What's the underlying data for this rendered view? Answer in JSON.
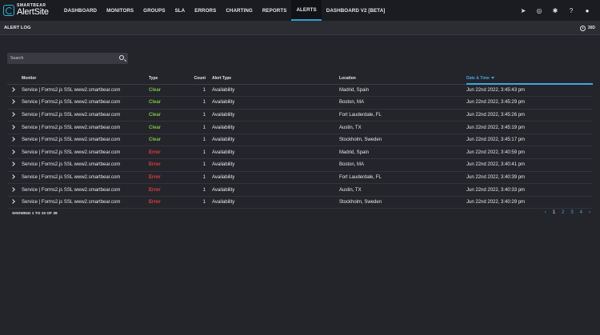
{
  "brand": {
    "company": "SMARTBEAR",
    "product": "AlertSite"
  },
  "nav": {
    "items": [
      {
        "label": "DASHBOARD"
      },
      {
        "label": "MONITORS"
      },
      {
        "label": "GROUPS"
      },
      {
        "label": "SLA"
      },
      {
        "label": "ERRORS"
      },
      {
        "label": "CHARTING"
      },
      {
        "label": "REPORTS"
      },
      {
        "label": "ALERTS"
      },
      {
        "label": "DASHBOARD V2 [BETA]"
      }
    ],
    "active": "ALERTS",
    "icons": [
      "rocket-icon",
      "lifebuoy-icon",
      "gear-icon",
      "help-icon",
      "user-icon"
    ]
  },
  "subbar": {
    "title": "ALERT LOG",
    "range": "30D"
  },
  "search": {
    "placeholder": "Search",
    "value": ""
  },
  "table": {
    "columns": [
      "Monitor",
      "Type",
      "Count",
      "Alert Type",
      "Location",
      "Date & Time"
    ],
    "sorted_column": "Date & Time",
    "rows": [
      {
        "monitor": "Service | Forms2.js SSL www2.smartbear.com",
        "type": "Clear",
        "count": "1",
        "alert_type": "Availability",
        "location": "Madrid, Spain",
        "datetime": "Jun 22nd 2022, 3:45:43 pm"
      },
      {
        "monitor": "Service | Forms2.js SSL www2.smartbear.com",
        "type": "Clear",
        "count": "1",
        "alert_type": "Availability",
        "location": "Boston, MA",
        "datetime": "Jun 22nd 2022, 3:45:29 pm"
      },
      {
        "monitor": "Service | Forms2.js SSL www2.smartbear.com",
        "type": "Clear",
        "count": "1",
        "alert_type": "Availability",
        "location": "Fort Lauderdale, FL",
        "datetime": "Jun 22nd 2022, 3:45:26 pm"
      },
      {
        "monitor": "Service | Forms2.js SSL www2.smartbear.com",
        "type": "Clear",
        "count": "1",
        "alert_type": "Availability",
        "location": "Austin, TX",
        "datetime": "Jun 22nd 2022, 3:45:19 pm"
      },
      {
        "monitor": "Service | Forms2.js SSL www2.smartbear.com",
        "type": "Clear",
        "count": "1",
        "alert_type": "Availability",
        "location": "Stockholm, Sweden",
        "datetime": "Jun 22nd 2022, 3:45:17 pm"
      },
      {
        "monitor": "Service | Forms2.js SSL www2.smartbear.com",
        "type": "Error",
        "count": "1",
        "alert_type": "Availability",
        "location": "Madrid, Spain",
        "datetime": "Jun 22nd 2022, 3:40:59 pm"
      },
      {
        "monitor": "Service | Forms2.js SSL www2.smartbear.com",
        "type": "Error",
        "count": "1",
        "alert_type": "Availability",
        "location": "Boston, MA",
        "datetime": "Jun 22nd 2022, 3:40:41 pm"
      },
      {
        "monitor": "Service | Forms2.js SSL www2.smartbear.com",
        "type": "Error",
        "count": "1",
        "alert_type": "Availability",
        "location": "Fort Lauderdale, FL",
        "datetime": "Jun 22nd 2022, 3:40:39 pm"
      },
      {
        "monitor": "Service | Forms2.js SSL www2.smartbear.com",
        "type": "Error",
        "count": "1",
        "alert_type": "Availability",
        "location": "Austin, TX",
        "datetime": "Jun 22nd 2022, 3:40:33 pm"
      },
      {
        "monitor": "Service | Forms2.js SSL www2.smartbear.com",
        "type": "Error",
        "count": "1",
        "alert_type": "Availability",
        "location": "Stockholm, Sweden",
        "datetime": "Jun 22nd 2022, 3:40:29 pm"
      }
    ]
  },
  "footer": {
    "showing": "SHOWING 1 TO 10 OF 38"
  },
  "pagination": {
    "prev": "‹",
    "pages": [
      "1",
      "2",
      "3",
      "4"
    ],
    "current": "1",
    "next": "›"
  },
  "colors": {
    "clear": "#7cc142",
    "error": "#e53e3e",
    "accent": "#3ea8e0"
  }
}
